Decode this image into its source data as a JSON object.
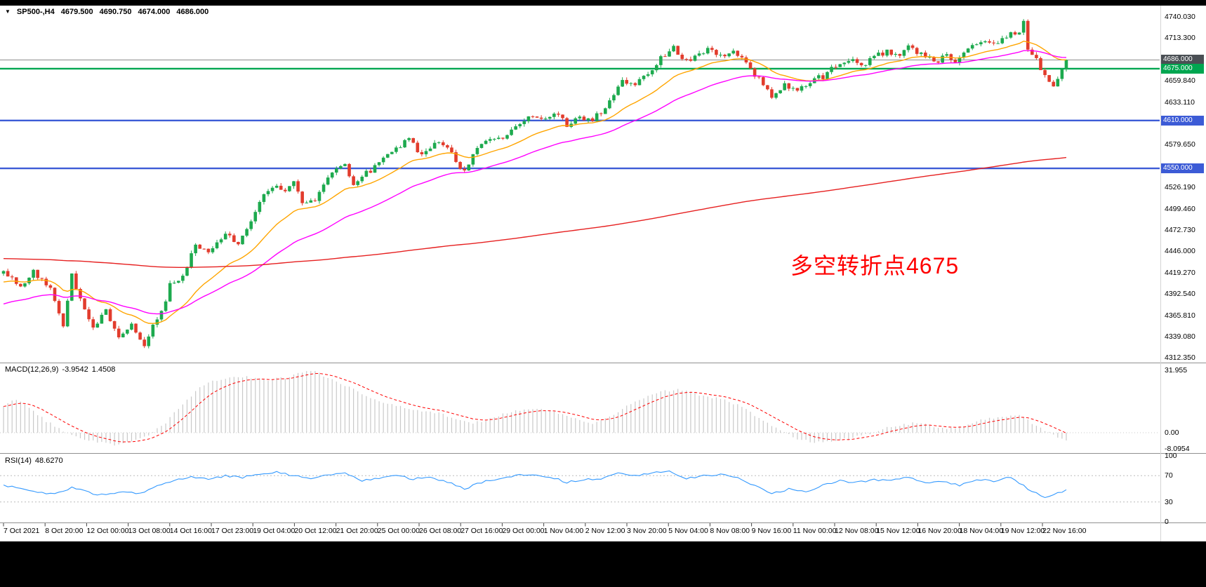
{
  "symbol_bar": {
    "symbol": "SP500-,H4",
    "open": "4679.500",
    "high": "4690.750",
    "low": "4674.000",
    "close": "4686.000"
  },
  "annotation": {
    "text": "多空转折点4675",
    "color": "#ff0000"
  },
  "chart_data": {
    "type": "candlestick",
    "symbol": "SP500-",
    "timeframe": "H4",
    "candle_count": 250,
    "noise_seed": 123457,
    "noise_amp": 7,
    "wick_amp": 3.5,
    "colors": {
      "up": "#1daa4e",
      "down": "#e23c2d",
      "macd_hist": "#c9c9c9",
      "macd_signal": "#ff0000",
      "rsi_line": "#3399ff",
      "separator": "#909090",
      "grid_minor": "#c0c0c0"
    },
    "y_axis": {
      "max": 4740.03,
      "min": 4309.11,
      "labels": [
        "4740.030",
        "4713.300",
        "4659.840",
        "4633.110",
        "4606.380",
        "4579.650",
        "4526.190",
        "4499.460",
        "4472.730",
        "4446.000",
        "4419.270",
        "4392.540",
        "4365.810",
        "4339.080",
        "4312.350"
      ],
      "tags": [
        {
          "value": "4686.000",
          "color": "#4a4f54"
        },
        {
          "value": "4675.000",
          "color": "#00a650"
        },
        {
          "value": "4610.000",
          "color": "#3c5bd6"
        },
        {
          "value": "4550.000",
          "color": "#3c5bd6"
        }
      ]
    },
    "levels": [
      {
        "value": 4686.0,
        "color": "#8c8c8c",
        "width": 1
      },
      {
        "value": 4675.0,
        "color": "#00a650",
        "width": 2.4
      },
      {
        "value": 4610.0,
        "color": "#3c5bd6",
        "width": 2.4
      },
      {
        "value": 4550.0,
        "color": "#3c5bd6",
        "width": 2.4
      }
    ],
    "moving_averages": [
      {
        "name": "ma-fast-orange",
        "color": "#ffa500",
        "alpha": 0.1,
        "seed": 4406,
        "width": 1.4
      },
      {
        "name": "ma-mid-magenta",
        "color": "#ff00ff",
        "alpha": 0.045,
        "seed": 4378,
        "width": 1.4
      },
      {
        "name": "ma-slow-red",
        "color": "#e62020",
        "alpha": 0.005,
        "seed": 4437,
        "width": 1.4
      }
    ],
    "price_waypoints": [
      [
        0,
        4418
      ],
      [
        4,
        4402
      ],
      [
        7,
        4420
      ],
      [
        11,
        4398
      ],
      [
        14,
        4352
      ],
      [
        16,
        4415
      ],
      [
        19,
        4370
      ],
      [
        21,
        4348
      ],
      [
        24,
        4372
      ],
      [
        27,
        4340
      ],
      [
        30,
        4355
      ],
      [
        33,
        4328
      ],
      [
        35,
        4352
      ],
      [
        37,
        4368
      ],
      [
        39,
        4405
      ],
      [
        42,
        4412
      ],
      [
        45,
        4455
      ],
      [
        48,
        4442
      ],
      [
        52,
        4468
      ],
      [
        55,
        4452
      ],
      [
        58,
        4485
      ],
      [
        60,
        4510
      ],
      [
        63,
        4528
      ],
      [
        66,
        4522
      ],
      [
        68,
        4536
      ],
      [
        70,
        4505
      ],
      [
        73,
        4512
      ],
      [
        77,
        4548
      ],
      [
        80,
        4553
      ],
      [
        82,
        4526
      ],
      [
        85,
        4544
      ],
      [
        88,
        4556
      ],
      [
        92,
        4576
      ],
      [
        95,
        4585
      ],
      [
        98,
        4568
      ],
      [
        101,
        4583
      ],
      [
        104,
        4578
      ],
      [
        106,
        4556
      ],
      [
        108,
        4546
      ],
      [
        111,
        4574
      ],
      [
        114,
        4590
      ],
      [
        117,
        4584
      ],
      [
        120,
        4604
      ],
      [
        123,
        4614
      ],
      [
        126,
        4609
      ],
      [
        129,
        4620
      ],
      [
        132,
        4605
      ],
      [
        135,
        4614
      ],
      [
        138,
        4612
      ],
      [
        140,
        4620
      ],
      [
        143,
        4642
      ],
      [
        145,
        4660
      ],
      [
        148,
        4654
      ],
      [
        151,
        4668
      ],
      [
        154,
        4688
      ],
      [
        157,
        4701
      ],
      [
        160,
        4684
      ],
      [
        163,
        4694
      ],
      [
        166,
        4701
      ],
      [
        168,
        4690
      ],
      [
        171,
        4698
      ],
      [
        174,
        4680
      ],
      [
        177,
        4661
      ],
      [
        180,
        4638
      ],
      [
        183,
        4655
      ],
      [
        186,
        4646
      ],
      [
        189,
        4660
      ],
      [
        192,
        4665
      ],
      [
        195,
        4680
      ],
      [
        198,
        4686
      ],
      [
        201,
        4679
      ],
      [
        204,
        4690
      ],
      [
        207,
        4696
      ],
      [
        210,
        4690
      ],
      [
        212,
        4701
      ],
      [
        215,
        4694
      ],
      [
        218,
        4683
      ],
      [
        221,
        4691
      ],
      [
        223,
        4681
      ],
      [
        226,
        4699
      ],
      [
        229,
        4709
      ],
      [
        232,
        4704
      ],
      [
        235,
        4716
      ],
      [
        238,
        4720
      ],
      [
        239,
        4737
      ],
      [
        240,
        4700
      ],
      [
        242,
        4689
      ],
      [
        244,
        4664
      ],
      [
        246,
        4651
      ],
      [
        248,
        4672
      ],
      [
        249,
        4686
      ]
    ],
    "macd": {
      "label": "MACD(12,26,9)",
      "value": "-3.9542",
      "signal_value": "1.4508",
      "axis_labels": [
        {
          "text": "31.955",
          "v": 31.955
        },
        {
          "text": "0.00",
          "v": 0
        },
        {
          "text": "-8.0954",
          "v": -8.0954
        }
      ],
      "waypoints": [
        [
          0,
          14
        ],
        [
          3,
          17
        ],
        [
          6,
          13
        ],
        [
          10,
          6
        ],
        [
          14,
          1
        ],
        [
          18,
          -3
        ],
        [
          22,
          -5
        ],
        [
          26,
          -6
        ],
        [
          30,
          -4
        ],
        [
          34,
          -1
        ],
        [
          38,
          5
        ],
        [
          42,
          15
        ],
        [
          46,
          23
        ],
        [
          50,
          27
        ],
        [
          54,
          29
        ],
        [
          58,
          28
        ],
        [
          62,
          27
        ],
        [
          66,
          28
        ],
        [
          70,
          31
        ],
        [
          72,
          31.9
        ],
        [
          74,
          30
        ],
        [
          78,
          26
        ],
        [
          82,
          22
        ],
        [
          86,
          18
        ],
        [
          90,
          15
        ],
        [
          94,
          13
        ],
        [
          98,
          11
        ],
        [
          102,
          10
        ],
        [
          106,
          7
        ],
        [
          110,
          5
        ],
        [
          114,
          7
        ],
        [
          118,
          10
        ],
        [
          122,
          12
        ],
        [
          126,
          12
        ],
        [
          130,
          10
        ],
        [
          134,
          7
        ],
        [
          138,
          5
        ],
        [
          142,
          8
        ],
        [
          146,
          14
        ],
        [
          150,
          18
        ],
        [
          154,
          21
        ],
        [
          158,
          22
        ],
        [
          162,
          20
        ],
        [
          166,
          18
        ],
        [
          170,
          16
        ],
        [
          174,
          12
        ],
        [
          178,
          6
        ],
        [
          182,
          1
        ],
        [
          186,
          -3
        ],
        [
          190,
          -5
        ],
        [
          194,
          -4
        ],
        [
          198,
          -3
        ],
        [
          202,
          -1
        ],
        [
          206,
          2
        ],
        [
          210,
          4
        ],
        [
          214,
          5
        ],
        [
          218,
          3
        ],
        [
          222,
          2
        ],
        [
          226,
          4
        ],
        [
          230,
          7
        ],
        [
          234,
          8
        ],
        [
          238,
          9
        ],
        [
          241,
          5
        ],
        [
          244,
          1
        ],
        [
          247,
          -2
        ],
        [
          249,
          -3.9542
        ]
      ]
    },
    "rsi": {
      "label": "RSI(14)",
      "value": "48.6270",
      "levels": [
        70,
        30
      ],
      "axis_labels": [
        {
          "text": "100",
          "v": 100
        },
        {
          "text": "70",
          "v": 70
        },
        {
          "text": "30",
          "v": 30
        },
        {
          "text": "0",
          "v": 0
        }
      ],
      "waypoints": [
        [
          0,
          55
        ],
        [
          4,
          50
        ],
        [
          8,
          45
        ],
        [
          12,
          42
        ],
        [
          16,
          52
        ],
        [
          20,
          44
        ],
        [
          24,
          40
        ],
        [
          28,
          46
        ],
        [
          32,
          42
        ],
        [
          36,
          56
        ],
        [
          40,
          62
        ],
        [
          44,
          68
        ],
        [
          48,
          64
        ],
        [
          52,
          70
        ],
        [
          56,
          67
        ],
        [
          60,
          73
        ],
        [
          64,
          75
        ],
        [
          68,
          70
        ],
        [
          72,
          64
        ],
        [
          76,
          72
        ],
        [
          80,
          74
        ],
        [
          84,
          62
        ],
        [
          88,
          66
        ],
        [
          92,
          70
        ],
        [
          96,
          65
        ],
        [
          100,
          68
        ],
        [
          104,
          60
        ],
        [
          108,
          50
        ],
        [
          112,
          60
        ],
        [
          116,
          65
        ],
        [
          120,
          70
        ],
        [
          124,
          72
        ],
        [
          128,
          68
        ],
        [
          132,
          60
        ],
        [
          136,
          64
        ],
        [
          140,
          66
        ],
        [
          144,
          74
        ],
        [
          148,
          70
        ],
        [
          152,
          74
        ],
        [
          156,
          78
        ],
        [
          160,
          65
        ],
        [
          164,
          70
        ],
        [
          168,
          72
        ],
        [
          172,
          66
        ],
        [
          176,
          55
        ],
        [
          180,
          42
        ],
        [
          184,
          50
        ],
        [
          188,
          46
        ],
        [
          192,
          55
        ],
        [
          196,
          62
        ],
        [
          200,
          60
        ],
        [
          204,
          64
        ],
        [
          208,
          62
        ],
        [
          212,
          68
        ],
        [
          216,
          58
        ],
        [
          220,
          62
        ],
        [
          224,
          55
        ],
        [
          228,
          65
        ],
        [
          232,
          62
        ],
        [
          236,
          68
        ],
        [
          240,
          50
        ],
        [
          244,
          38
        ],
        [
          247,
          43
        ],
        [
          249,
          48.627
        ]
      ]
    },
    "x_axis": {
      "labels": [
        "7 Oct 2021",
        "8 Oct 20:00",
        "12 Oct 00:00",
        "13 Oct 08:00",
        "14 Oct 16:00",
        "17 Oct 23:00",
        "19 Oct 04:00",
        "20 Oct 12:00",
        "21 Oct 20:00",
        "25 Oct 00:00",
        "26 Oct 08:00",
        "27 Oct 16:00",
        "29 Oct 00:00",
        "1 Nov 04:00",
        "2 Nov 12:00",
        "3 Nov 20:00",
        "5 Nov 04:00",
        "8 Nov 08:00",
        "9 Nov 16:00",
        "11 Nov 00:00",
        "12 Nov 08:00",
        "15 Nov 12:00",
        "16 Nov 20:00",
        "18 Nov 04:00",
        "19 Nov 12:00",
        "22 Nov 16:00"
      ]
    }
  }
}
